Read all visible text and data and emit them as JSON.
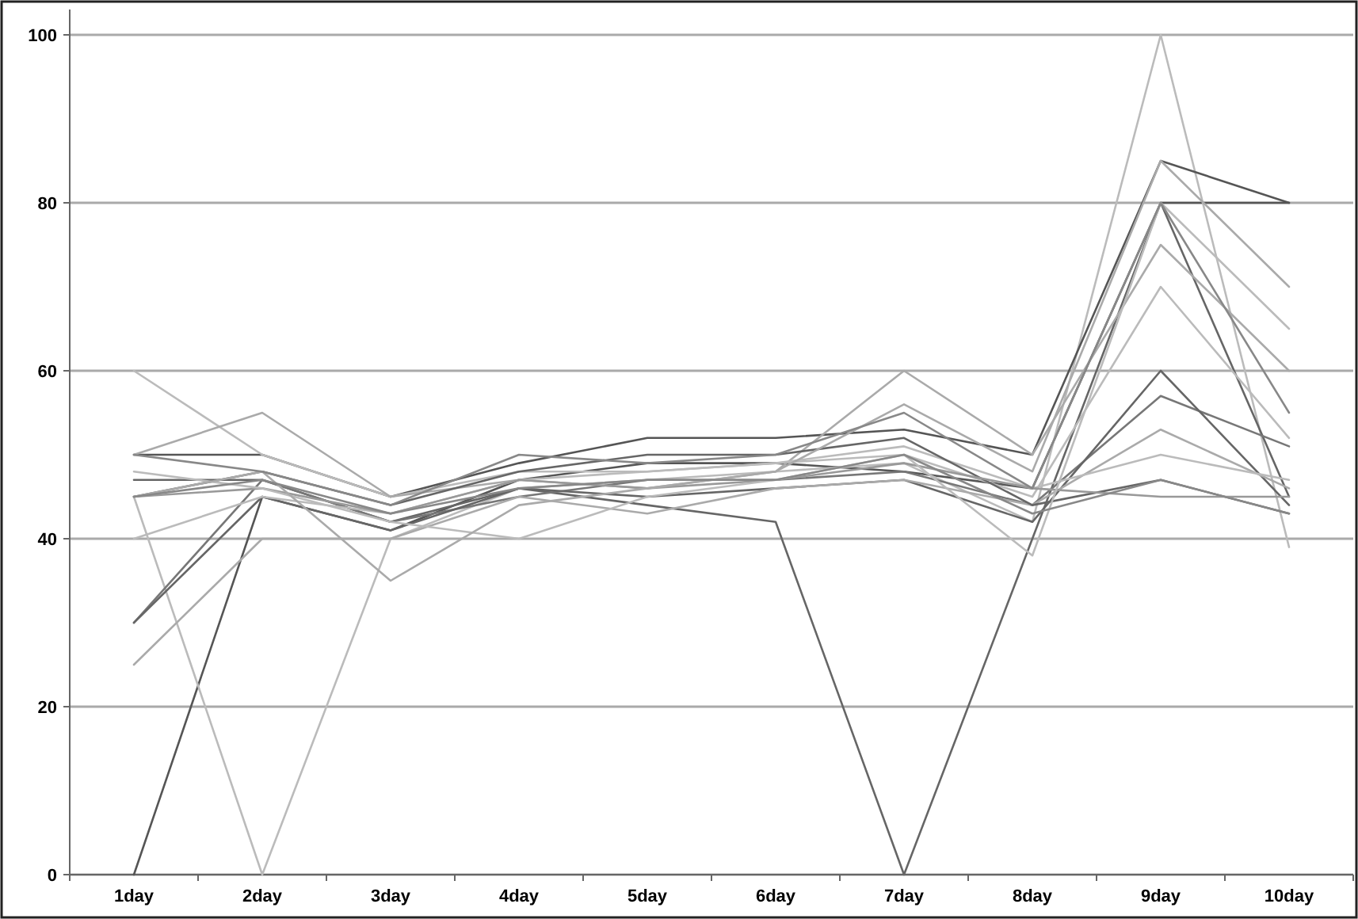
{
  "chart_data": {
    "type": "line",
    "categories": [
      "1day",
      "2day",
      "3day",
      "4day",
      "5day",
      "6day",
      "7day",
      "8day",
      "9day",
      "10day"
    ],
    "series": [
      {
        "color": "#555555",
        "values": [
          0,
          45,
          41,
          47,
          49,
          49,
          48,
          46,
          80,
          80
        ]
      },
      {
        "color": "#bbbbbb",
        "values": [
          45,
          0,
          40,
          46,
          47,
          48,
          49,
          42,
          100,
          39
        ]
      },
      {
        "color": "#555555",
        "values": [
          50,
          50,
          45,
          49,
          52,
          52,
          53,
          50,
          85,
          80
        ]
      },
      {
        "color": "#666666",
        "values": [
          47,
          47,
          42,
          46,
          44,
          42,
          0,
          40,
          80,
          45
        ]
      },
      {
        "color": "#bbbbbb",
        "values": [
          60,
          50,
          45,
          48,
          48,
          49,
          50,
          45,
          70,
          52
        ]
      },
      {
        "color": "#aaaaaa",
        "values": [
          50,
          55,
          45,
          47,
          46,
          48,
          60,
          50,
          75,
          60
        ]
      },
      {
        "color": "#777777",
        "values": [
          30,
          47,
          42,
          45,
          47,
          47,
          48,
          44,
          57,
          51
        ]
      },
      {
        "color": "#666666",
        "values": [
          30,
          45,
          41,
          46,
          45,
          46,
          47,
          42,
          60,
          44
        ]
      },
      {
        "color": "#aaaaaa",
        "values": [
          25,
          40,
          40,
          45,
          43,
          46,
          47,
          44,
          53,
          46
        ]
      },
      {
        "color": "#bbbbbb",
        "values": [
          40,
          45,
          43,
          47,
          48,
          49,
          51,
          46,
          50,
          47
        ]
      },
      {
        "color": "#666666",
        "values": [
          45,
          48,
          44,
          48,
          50,
          50,
          52,
          44,
          47,
          43
        ]
      },
      {
        "color": "#999999",
        "values": [
          45,
          46,
          43,
          47,
          46,
          47,
          49,
          46,
          45,
          45
        ]
      },
      {
        "color": "#bbbbbb",
        "values": [
          48,
          46,
          42,
          40,
          45,
          47,
          50,
          38,
          80,
          65
        ]
      },
      {
        "color": "#aaaaaa",
        "values": [
          45,
          48,
          35,
          44,
          46,
          48,
          56,
          48,
          85,
          70
        ]
      },
      {
        "color": "#888888",
        "values": [
          50,
          48,
          44,
          50,
          49,
          50,
          55,
          46,
          80,
          55
        ]
      },
      {
        "color": "#888888",
        "values": [
          45,
          47,
          43,
          46,
          47,
          47,
          50,
          43,
          47,
          43
        ]
      }
    ],
    "ylim": [
      0,
      100
    ],
    "yticks": [
      0,
      20,
      40,
      60,
      80,
      100
    ],
    "grid": "y"
  }
}
